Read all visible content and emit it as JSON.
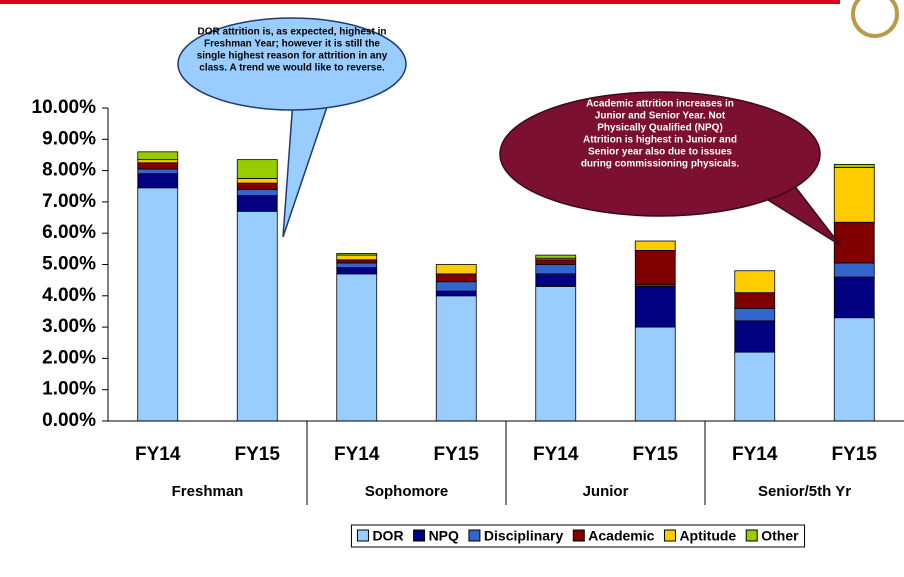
{
  "chart_data": {
    "type": "stacked_bar",
    "categories": [
      "FY14",
      "FY15",
      "FY14",
      "FY15",
      "FY14",
      "FY15",
      "FY14",
      "FY15"
    ],
    "groups": [
      "Freshman",
      "Sophomore",
      "Junior",
      "Senior/5th Yr"
    ],
    "series": [
      {
        "name": "DOR",
        "color": "#99ccff",
        "values": [
          7.45,
          6.7,
          4.7,
          4.0,
          4.3,
          3.0,
          2.2,
          3.3
        ]
      },
      {
        "name": "NPQ",
        "color": "#000080",
        "values": [
          0.45,
          0.5,
          0.2,
          0.15,
          0.4,
          1.3,
          1.0,
          1.3
        ]
      },
      {
        "name": "Disciplinary",
        "color": "#3366cc",
        "values": [
          0.15,
          0.2,
          0.15,
          0.3,
          0.3,
          0.05,
          0.4,
          0.45
        ]
      },
      {
        "name": "Academic",
        "color": "#800000",
        "values": [
          0.2,
          0.2,
          0.1,
          0.25,
          0.15,
          1.1,
          0.5,
          1.3
        ]
      },
      {
        "name": "Aptitude",
        "color": "#ffcc00",
        "values": [
          0.1,
          0.15,
          0.15,
          0.3,
          0.05,
          0.3,
          0.7,
          1.75
        ]
      },
      {
        "name": "Other",
        "color": "#99cc00",
        "values": [
          0.25,
          0.6,
          0.05,
          0,
          0.1,
          0,
          0,
          0.1
        ]
      }
    ],
    "ylim": [
      0,
      10
    ],
    "yticks": [
      {
        "value": 0,
        "label": "0.00%"
      },
      {
        "value": 1,
        "label": "1.00%"
      },
      {
        "value": 2,
        "label": "2.00%"
      },
      {
        "value": 3,
        "label": "3.00%"
      },
      {
        "value": 4,
        "label": "4.00%"
      },
      {
        "value": 5,
        "label": "5.00%"
      },
      {
        "value": 6,
        "label": "6.00%"
      },
      {
        "value": 7,
        "label": "7.00%"
      },
      {
        "value": 8,
        "label": "8.00%"
      },
      {
        "value": 9,
        "label": "9.00%"
      },
      {
        "value": 10,
        "label": "10.00%"
      }
    ],
    "annotations": [
      {
        "text": [
          "DOR attrition is, as expected, highest in",
          "Freshman Year; however it is still the",
          "single highest reason for attrition in any",
          "class.  A trend we would like to reverse."
        ]
      },
      {
        "text": [
          "Academic attrition increases in",
          "Junior and Senior Year.  Not",
          "Physically Qualified (NPQ)",
          "Attrition is highest in Junior and",
          "Senior year also due to issues",
          "during commissioning physicals."
        ]
      }
    ]
  }
}
